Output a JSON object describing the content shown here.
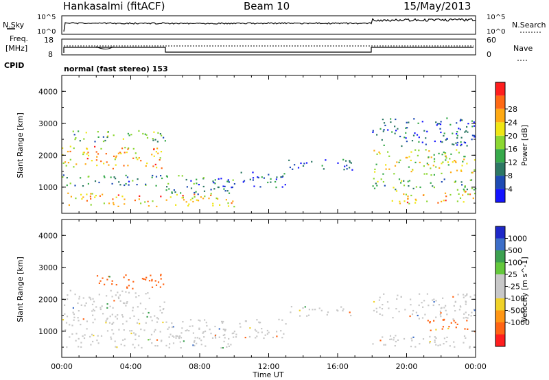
{
  "header": {
    "station": "Hankasalmi (fitACF)",
    "beam": "Beam 10",
    "date": "15/May/2013"
  },
  "strip": {
    "left_labels": [
      "N.Sky",
      "Freq.",
      "[MHz]",
      "CPID"
    ],
    "right_labels": [
      "N.Search",
      "Nave"
    ],
    "noise_ticks": [
      "10^5",
      "10^0"
    ],
    "noise_ticks_right": [
      "10^5",
      "10^0"
    ],
    "freq_ticks": [
      "18",
      "8"
    ],
    "nave_ticks": [
      "60",
      "0"
    ],
    "cpid_text": "normal (fast stereo) 153"
  },
  "chart_data": [
    {
      "type": "heatmap",
      "title": "",
      "xlabel": "",
      "ylabel": "Slant Range [km]",
      "xlim": [
        0,
        24
      ],
      "ylim": [
        180,
        4500
      ],
      "x_ticks": [
        "00:00",
        "04:00",
        "08:00",
        "12:00",
        "16:00",
        "20:00",
        "00:00"
      ],
      "y_ticks": [
        "1000",
        "2000",
        "3000",
        "4000"
      ],
      "colorbar": {
        "label": "Power [dB]",
        "ticks": [
          "4",
          "8",
          "12",
          "16",
          "20",
          "24",
          "28"
        ],
        "colors": [
          "#1414ff",
          "#1e4bb4",
          "#2d7864",
          "#37aa4b",
          "#8cd732",
          "#f0e614",
          "#ffaa14",
          "#ff6914",
          "#ff1e1e"
        ]
      },
      "bands": [
        {
          "t0": 0,
          "t1": 6,
          "r0": 1600,
          "r1": 2300,
          "value": 22
        },
        {
          "t0": 0,
          "t1": 6,
          "r0": 2450,
          "r1": 2800,
          "value": 13
        },
        {
          "t0": 0,
          "t1": 6,
          "r0": 1050,
          "r1": 1400,
          "value": 10
        },
        {
          "t0": 0,
          "t1": 2,
          "r0": 450,
          "r1": 900,
          "value": 21
        },
        {
          "t0": 2,
          "t1": 10,
          "r0": 400,
          "r1": 800,
          "value": 23
        },
        {
          "t0": 6,
          "t1": 10,
          "r0": 800,
          "r1": 1400,
          "value": 9
        },
        {
          "t0": 9,
          "t1": 13,
          "r0": 1000,
          "r1": 1500,
          "value": 7
        },
        {
          "t0": 13,
          "t1": 17,
          "r0": 1550,
          "r1": 1900,
          "value": 6
        },
        {
          "t0": 18,
          "t1": 24,
          "r0": 1400,
          "r1": 2200,
          "value": 18
        },
        {
          "t0": 18,
          "t1": 24,
          "r0": 900,
          "r1": 1300,
          "value": 12
        },
        {
          "t0": 19,
          "t1": 24,
          "r0": 500,
          "r1": 900,
          "value": 22
        },
        {
          "t0": 18,
          "t1": 24,
          "r0": 2300,
          "r1": 3200,
          "value": 6
        }
      ]
    },
    {
      "type": "heatmap",
      "title": "",
      "xlabel": "Time UT",
      "ylabel": "Slant Range [km]",
      "xlim": [
        0,
        24
      ],
      "ylim": [
        180,
        4500
      ],
      "x_ticks": [
        "00:00",
        "04:00",
        "08:00",
        "12:00",
        "16:00",
        "20:00",
        "00:00"
      ],
      "y_ticks": [
        "1000",
        "2000",
        "3000",
        "4000"
      ],
      "colorbar": {
        "label": "Velocity [m s^-1]",
        "ticks": [
          "1000",
          "500",
          "100",
          "25",
          "-25",
          "-100",
          "-500",
          "-1000"
        ],
        "colors": [
          "#1e28c8",
          "#3c6ec8",
          "#3ca050",
          "#64c83c",
          "#c8c8c8",
          "#c8c8c8",
          "#f0d228",
          "#ff9614",
          "#ff6414",
          "#ff1e1e"
        ]
      },
      "bands": [
        {
          "t0": 0,
          "t1": 6,
          "r0": 1200,
          "r1": 2300,
          "value": 0
        },
        {
          "t0": 2,
          "t1": 6,
          "r0": 2300,
          "r1": 2800,
          "value": -350
        },
        {
          "t0": 0,
          "t1": 10,
          "r0": 500,
          "r1": 1100,
          "value": 0
        },
        {
          "t0": 6,
          "t1": 13,
          "r0": 800,
          "r1": 1400,
          "value": 0
        },
        {
          "t0": 13,
          "t1": 17,
          "r0": 1500,
          "r1": 1800,
          "value": 0
        },
        {
          "t0": 18,
          "t1": 24,
          "r0": 1400,
          "r1": 2200,
          "value": 0
        },
        {
          "t0": 21,
          "t1": 24,
          "r0": 1000,
          "r1": 1400,
          "value": -350
        },
        {
          "t0": 18,
          "t1": 24,
          "r0": 500,
          "r1": 900,
          "value": 0
        }
      ]
    }
  ]
}
